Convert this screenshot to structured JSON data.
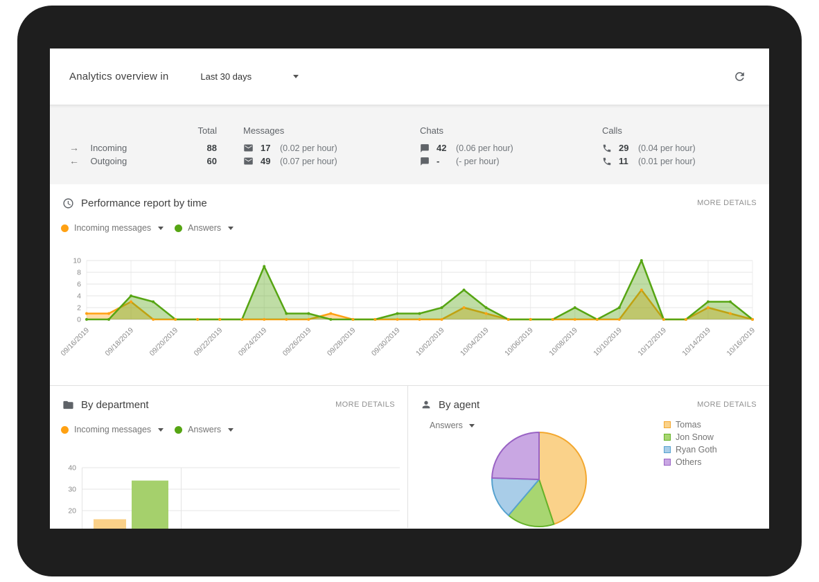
{
  "header": {
    "title": "Analytics overview in",
    "range_value": "Last 30 days"
  },
  "stats": {
    "col_total": "Total",
    "col_messages": "Messages",
    "col_chats": "Chats",
    "col_calls": "Calls",
    "rows": [
      {
        "arrow": "→",
        "label": "Incoming",
        "total": "88",
        "messages": "17",
        "messages_rate": "(0.02 per hour)",
        "chats": "42",
        "chats_rate": "(0.06 per hour)",
        "calls": "29",
        "calls_rate": "(0.04 per hour)"
      },
      {
        "arrow": "←",
        "label": "Outgoing",
        "total": "60",
        "messages": "49",
        "messages_rate": "(0.07 per hour)",
        "chats": "-",
        "chats_rate": "(- per hour)",
        "calls": "11",
        "calls_rate": "(0.01 per hour)"
      }
    ]
  },
  "performance": {
    "title": "Performance report by time",
    "more_details": "MORE DETAILS"
  },
  "department": {
    "title": "By department",
    "more_details": "MORE DETAILS"
  },
  "agent": {
    "title": "By agent",
    "more_details": "MORE DETAILS"
  },
  "chart_data": [
    {
      "id": "performance_by_time",
      "type": "area",
      "title": "Performance report by time",
      "x": [
        "09/16/2019",
        "09/17/2019",
        "09/18/2019",
        "09/19/2019",
        "09/20/2019",
        "09/21/2019",
        "09/22/2019",
        "09/23/2019",
        "09/24/2019",
        "09/25/2019",
        "09/26/2019",
        "09/27/2019",
        "09/28/2019",
        "09/29/2019",
        "09/30/2019",
        "10/01/2019",
        "10/02/2019",
        "10/03/2019",
        "10/04/2019",
        "10/05/2019",
        "10/06/2019",
        "10/07/2019",
        "10/08/2019",
        "10/09/2019",
        "10/10/2019",
        "10/11/2019",
        "10/12/2019",
        "10/13/2019",
        "10/14/2019",
        "10/15/2019",
        "10/16/2019"
      ],
      "xtick_every": 2,
      "ylim": [
        0,
        10
      ],
      "yticks": [
        0,
        2,
        4,
        6,
        8,
        10
      ],
      "grid": true,
      "legend_position": "top-left",
      "series": [
        {
          "name": "Incoming messages",
          "color": "#ffa113",
          "values": [
            1,
            1,
            3,
            0,
            0,
            0,
            0,
            0,
            0,
            0,
            0,
            1,
            0,
            0,
            0,
            0,
            0,
            2,
            1,
            0,
            0,
            0,
            0,
            0,
            0,
            5,
            0,
            0,
            2,
            1,
            0
          ]
        },
        {
          "name": "Answers",
          "color": "#56a513",
          "values": [
            0,
            0,
            4,
            3,
            0,
            0,
            0,
            0,
            9,
            1,
            1,
            0,
            0,
            0,
            1,
            1,
            2,
            5,
            2,
            0,
            0,
            0,
            2,
            0,
            2,
            10,
            0,
            0,
            3,
            3,
            0
          ]
        }
      ]
    },
    {
      "id": "by_department",
      "type": "bar",
      "title": "By department",
      "categories": [
        ""
      ],
      "ylim": [
        0,
        40
      ],
      "yticks": [
        40,
        30,
        20,
        10
      ],
      "grid": true,
      "legend_position": "top-left",
      "series": [
        {
          "name": "Incoming messages",
          "color": "#ffa113",
          "bar_color": "#fad088",
          "values": [
            16
          ]
        },
        {
          "name": "Answers",
          "color": "#56a513",
          "bar_color": "#a5d06c",
          "values": [
            34
          ]
        }
      ]
    },
    {
      "id": "by_agent",
      "type": "pie",
      "title": "By agent",
      "metric": "Answers",
      "labels": [
        "Tomas",
        "Jon Snow",
        "Ryan Goth",
        "Others"
      ],
      "values": [
        22,
        8,
        7,
        12
      ],
      "fill_colors": [
        "#fad28a",
        "#a8d671",
        "#a9cde8",
        "#c9a7e3"
      ],
      "stroke_colors": [
        "#f3a72e",
        "#65b22a",
        "#56a2cf",
        "#9963c4"
      ],
      "legend_position": "right"
    }
  ]
}
